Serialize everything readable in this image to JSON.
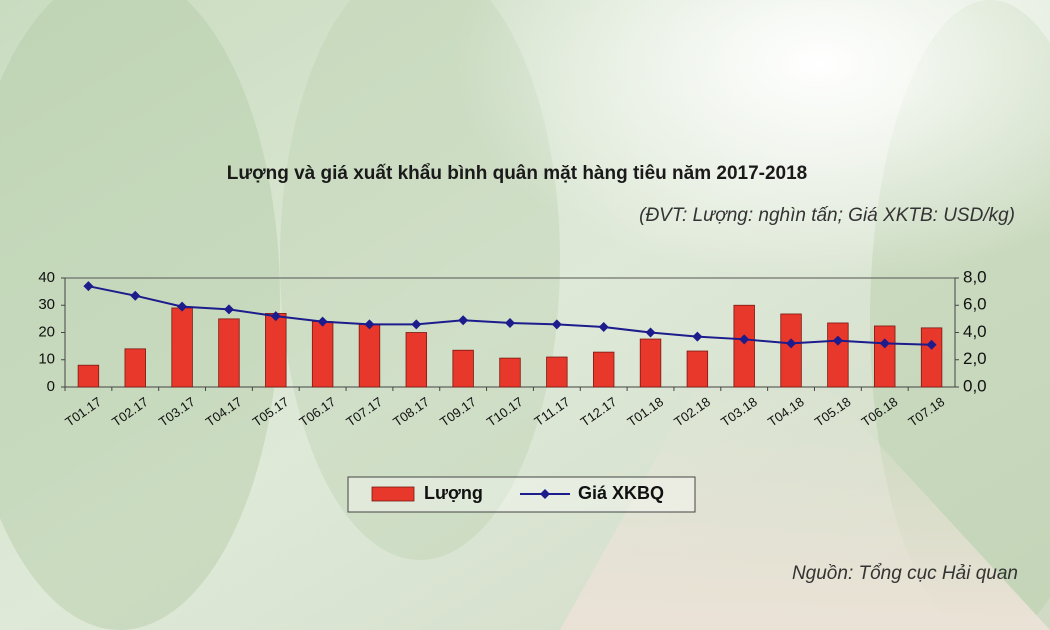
{
  "chart_data": {
    "type": "bar-line",
    "title": "Lượng và giá xuất khẩu bình quân mặt hàng tiêu năm 2017-2018",
    "subtitle": "(ĐVT: Lượng: nghìn tấn; Giá XKTB: USD/kg)",
    "source": "Nguồn: Tổng cục Hải quan",
    "categories": [
      "T01.17",
      "T02.17",
      "T03.17",
      "T04.17",
      "T05.17",
      "T06.17",
      "T07.17",
      "T08.17",
      "T09.17",
      "T10.17",
      "T11.17",
      "T12.17",
      "T01.18",
      "T02.18",
      "T03.18",
      "T04.18",
      "T05.18",
      "T06.18",
      "T07.18"
    ],
    "series": [
      {
        "name": "Lượng",
        "type": "bar",
        "color": "#e8372b",
        "values": [
          8,
          14,
          29,
          25,
          27,
          24,
          23,
          20,
          13.5,
          10.6,
          11,
          12.8,
          17.6,
          13.2,
          30,
          26.8,
          23.5,
          22.4,
          21.7
        ]
      },
      {
        "name": "Giá XKBQ",
        "type": "line",
        "axis": "y2",
        "color": "#1c1c8c",
        "values": [
          7.4,
          6.7,
          5.9,
          5.7,
          5.2,
          4.8,
          4.6,
          4.6,
          4.9,
          4.7,
          4.6,
          4.4,
          4.0,
          3.7,
          3.5,
          3.2,
          3.4,
          3.2,
          3.1
        ]
      }
    ],
    "ylim": [
      0,
      40
    ],
    "yticks": [
      0,
      10,
      20,
      30,
      40
    ],
    "y2lim": [
      0,
      8
    ],
    "y2ticks": [
      {
        "value": 0,
        "label": "0,0"
      },
      {
        "value": 2,
        "label": "2,0"
      },
      {
        "value": 4,
        "label": "4,0"
      },
      {
        "value": 6,
        "label": "6,0"
      },
      {
        "value": 8,
        "label": "8,0"
      }
    ],
    "legend": "bottom"
  }
}
